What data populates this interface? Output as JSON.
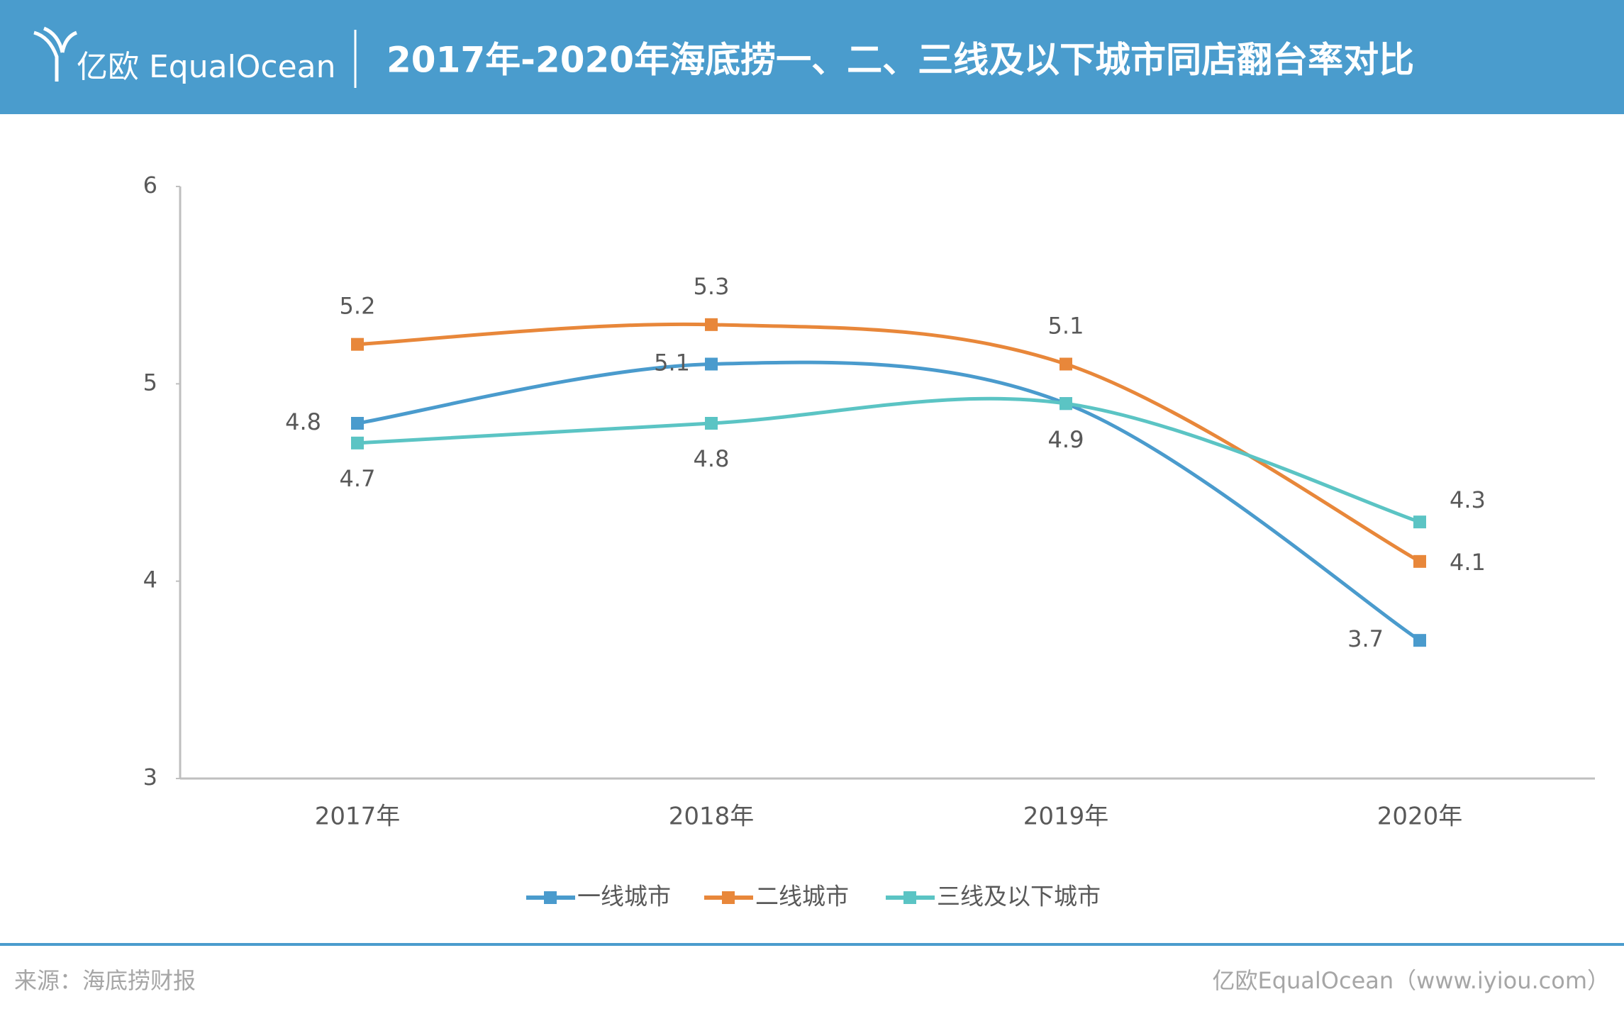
{
  "brand": "亿欧 EqualOcean",
  "chart_data": {
    "type": "line",
    "title": "2017年-2020年海底捞一、二、三线及以下城市同店翻台率对比",
    "categories": [
      "2017年",
      "2018年",
      "2019年",
      "2020年"
    ],
    "series": [
      {
        "name": "一线城市",
        "color": "#4a9bcd",
        "values": [
          4.8,
          5.1,
          4.9,
          3.7
        ]
      },
      {
        "name": "二线城市",
        "color": "#e8873a",
        "values": [
          5.2,
          5.3,
          5.1,
          4.1
        ]
      },
      {
        "name": "三线及以下城市",
        "color": "#5bc4c4",
        "values": [
          4.7,
          4.8,
          4.9,
          4.3
        ]
      }
    ],
    "ylim": [
      3,
      6
    ],
    "yticks": [
      3,
      4,
      5,
      6
    ],
    "grid": false,
    "legend": "bottom",
    "smooth": true,
    "source": "来源：海底捞财报",
    "credit": "亿欧EqualOcean（www.iyiou.com）"
  }
}
